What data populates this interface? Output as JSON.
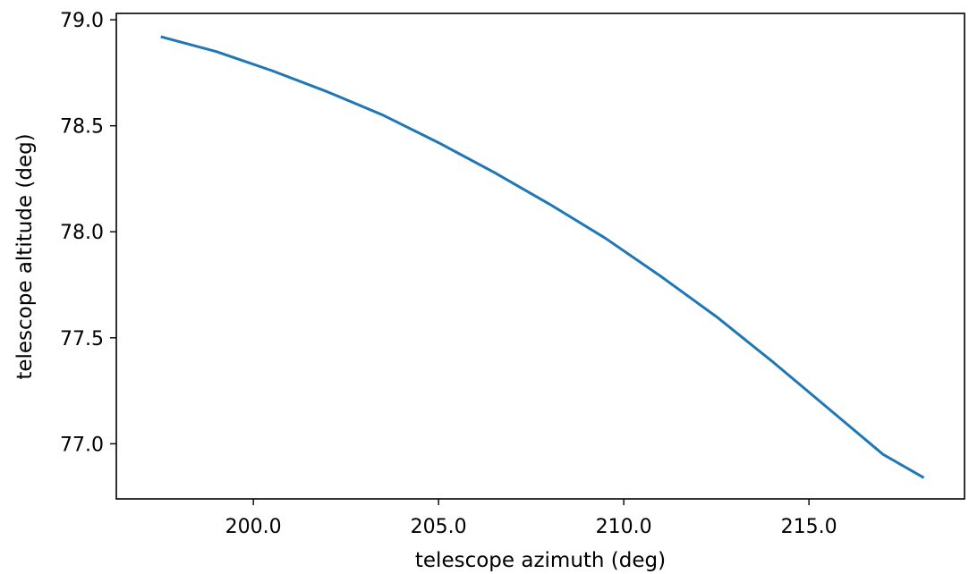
{
  "chart_data": {
    "type": "line",
    "title": "",
    "xlabel": "telescope azimuth (deg)",
    "ylabel": "telescope altitude (deg)",
    "xlim": [
      196.3,
      219.2
    ],
    "ylim": [
      76.74,
      79.03
    ],
    "xticks": [
      200.0,
      205.0,
      210.0,
      215.0
    ],
    "xtick_labels": [
      "200.0",
      "205.0",
      "210.0",
      "215.0"
    ],
    "yticks": [
      77.0,
      77.5,
      78.0,
      78.5,
      79.0
    ],
    "ytick_labels": [
      "77.0",
      "77.5",
      "78.0",
      "78.5",
      "79.0"
    ],
    "grid": false,
    "series": [
      {
        "color": "#1f77b4",
        "x": [
          197.5,
          199.0,
          200.5,
          202.0,
          203.5,
          205.0,
          206.5,
          208.0,
          209.5,
          211.0,
          212.5,
          214.0,
          215.5,
          217.0,
          218.1
        ],
        "y": [
          78.92,
          78.85,
          78.76,
          78.66,
          78.55,
          78.42,
          78.28,
          78.13,
          77.97,
          77.79,
          77.6,
          77.39,
          77.17,
          76.95,
          76.84
        ]
      }
    ]
  }
}
